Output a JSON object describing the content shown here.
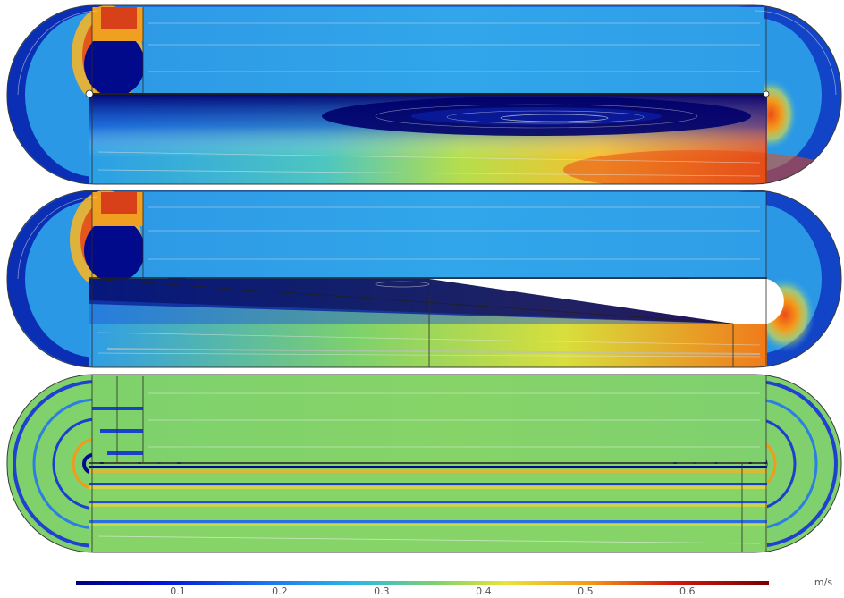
{
  "legend": {
    "unit": "m/s",
    "ticks": [
      "0.1",
      "0.2",
      "0.3",
      "0.4",
      "0.5",
      "0.6"
    ],
    "tick_values": [
      0.1,
      0.2,
      0.3,
      0.4,
      0.5,
      0.6
    ],
    "range": [
      0.0,
      0.68
    ]
  },
  "colors": {
    "deep_blue": "#00007a",
    "blue": "#1f4fd6",
    "cyan_blue": "#29a8e8",
    "green": "#7fd26a",
    "yellow": "#f3e03b",
    "orange": "#f39a1b",
    "red": "#d11a0f",
    "dark_red": "#7a0000",
    "streamline": "#e6e6e6",
    "divider": "#2b2b2b"
  },
  "panels": [
    {
      "name": "panel-1",
      "upper_channel_velocity": 0.3,
      "lower_inlet_velocity": 0.33,
      "lower_outlet_velocity": 0.55
    },
    {
      "name": "panel-2",
      "upper_channel_velocity": 0.3,
      "lower_inlet_velocity": 0.38,
      "lower_outlet_velocity": 0.5
    },
    {
      "name": "panel-3",
      "upper_channel_velocity": 0.4,
      "lower_inlet_velocity": 0.4,
      "lower_outlet_velocity": 0.4
    }
  ]
}
